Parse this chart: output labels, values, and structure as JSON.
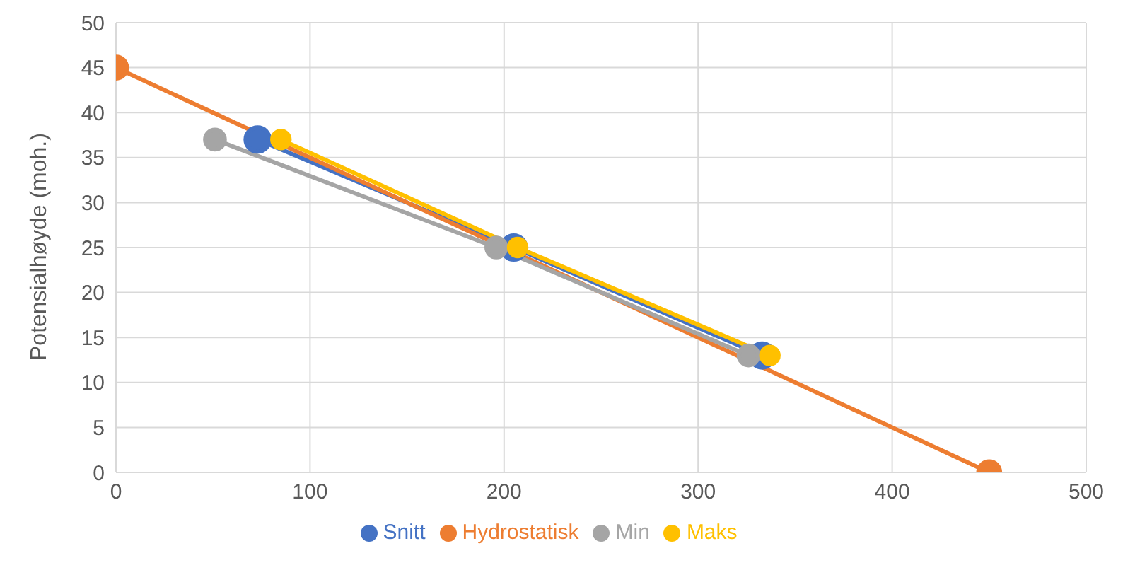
{
  "chart_data": {
    "type": "line",
    "ylabel": "Potensialhøyde (moh.)",
    "xlim": [
      0,
      500
    ],
    "xticks": [
      0,
      100,
      200,
      300,
      400,
      500
    ],
    "ylim": [
      0,
      50
    ],
    "yticks": [
      0,
      5,
      10,
      15,
      20,
      25,
      30,
      35,
      40,
      45,
      50
    ],
    "grid": true,
    "legend": "bottom",
    "marker": "circle",
    "line_style": "solid",
    "series": [
      {
        "name": "Snitt",
        "color": "#4472c4",
        "x": [
          73,
          205,
          333
        ],
        "values": [
          37,
          25,
          13
        ]
      },
      {
        "name": "Hydrostatisk",
        "color": "#ed7d31",
        "x": [
          0,
          450
        ],
        "values": [
          45,
          0
        ]
      },
      {
        "name": "Min",
        "color": "#a5a5a5",
        "x": [
          51,
          196,
          326
        ],
        "values": [
          37,
          25,
          13
        ]
      },
      {
        "name": "Maks",
        "color": "#ffc000",
        "x": [
          85,
          207,
          337
        ],
        "values": [
          37,
          25,
          13
        ]
      }
    ]
  }
}
